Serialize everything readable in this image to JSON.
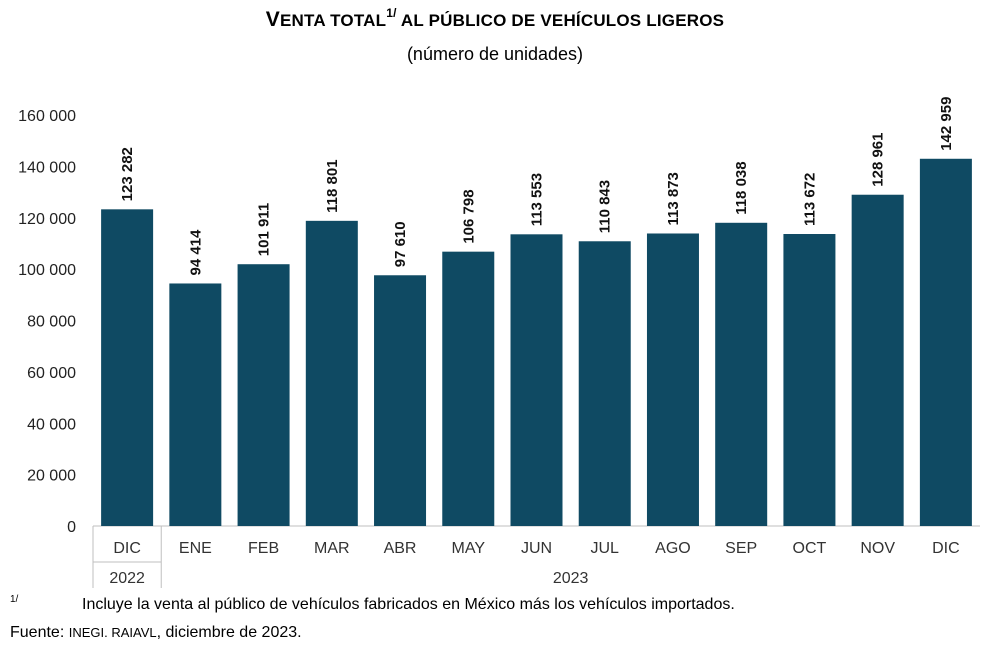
{
  "title": {
    "first_letter": "V",
    "word1_rest": "ENTA TOTAL",
    "sup": "1/",
    "rest": " AL PÚBLICO DE VEHÍCULOS LIGEROS"
  },
  "subtitle": "(número de unidades)",
  "chart_data": {
    "type": "bar",
    "categories": [
      "DIC",
      "ENE",
      "FEB",
      "MAR",
      "ABR",
      "MAY",
      "JUN",
      "JUL",
      "AGO",
      "SEP",
      "OCT",
      "NOV",
      "DIC"
    ],
    "years": [
      {
        "label": "2022",
        "span": [
          0,
          0
        ]
      },
      {
        "label": "2023",
        "span": [
          1,
          12
        ]
      }
    ],
    "values": [
      123282,
      94414,
      101911,
      118801,
      97610,
      106798,
      113553,
      110843,
      113873,
      118038,
      113672,
      128961,
      142959
    ],
    "value_labels": [
      "123 282",
      "94 414",
      "101 911",
      "118 801",
      "97 610",
      "106 798",
      "113 553",
      "110 843",
      "113 873",
      "118 038",
      "113 672",
      "128 961",
      "142 959"
    ],
    "ylim": [
      0,
      160000
    ],
    "yticks": [
      0,
      20000,
      40000,
      60000,
      80000,
      100000,
      120000,
      140000,
      160000
    ],
    "ytick_labels": [
      "0",
      "20 000",
      "40 000",
      "60 000",
      "80 000",
      "100 000",
      "120 000",
      "140 000",
      "160 000"
    ],
    "grid": false,
    "bar_color": "#0f4a63"
  },
  "footnote": {
    "marker": "1/",
    "text": "Incluye la venta al público de vehículos fabricados en México más los vehículos importados."
  },
  "source": {
    "label": "Fuente: ",
    "org": "INEGI. RAIAVL",
    "date": ", diciembre de 2023."
  }
}
